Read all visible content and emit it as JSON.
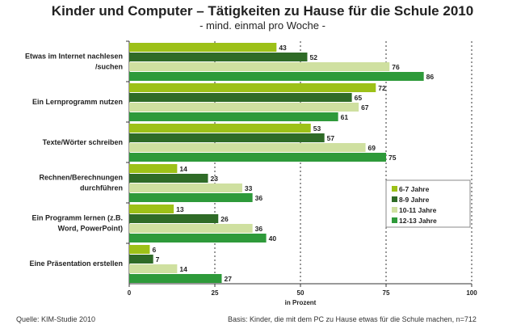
{
  "chart_data": {
    "type": "bar",
    "orientation": "horizontal",
    "title": "Kinder und Computer – Tätigkeiten zu Hause für die Schule 2010",
    "subtitle": "- mind. einmal pro Woche -",
    "categories": [
      [
        "Etwas im Internet nachlesen",
        "/suchen"
      ],
      [
        "Ein Lernprogramm nutzen"
      ],
      [
        "Texte/Wörter schreiben"
      ],
      [
        "Rechnen/Berechnungen",
        "durchführen"
      ],
      [
        "Ein Programm lernen (z.B.",
        "Word, PowerPoint)"
      ],
      [
        "Eine Präsentation erstellen"
      ]
    ],
    "series": [
      {
        "name": "6-7 Jahre",
        "color": "#9dc118",
        "values": [
          43,
          72,
          53,
          14,
          13,
          6
        ]
      },
      {
        "name": "8-9 Jahre",
        "color": "#2f6b27",
        "values": [
          52,
          65,
          57,
          23,
          26,
          7
        ]
      },
      {
        "name": "10-11 Jahre",
        "color": "#cfe0a0",
        "values": [
          76,
          67,
          69,
          33,
          36,
          14
        ]
      },
      {
        "name": "12-13 Jahre",
        "color": "#2e9a3a",
        "values": [
          86,
          61,
          75,
          36,
          40,
          27
        ]
      }
    ],
    "xlim": [
      0,
      100
    ],
    "xticks": [
      0,
      25,
      50,
      75,
      100
    ],
    "xlabel": "in Prozent",
    "grid": "vertical dotted",
    "legend": "right"
  },
  "footer": {
    "source": "Quelle: KIM-Studie 2010",
    "basis": "Basis: Kinder, die mit dem PC zu Hause etwas für die Schule machen, n=712"
  }
}
